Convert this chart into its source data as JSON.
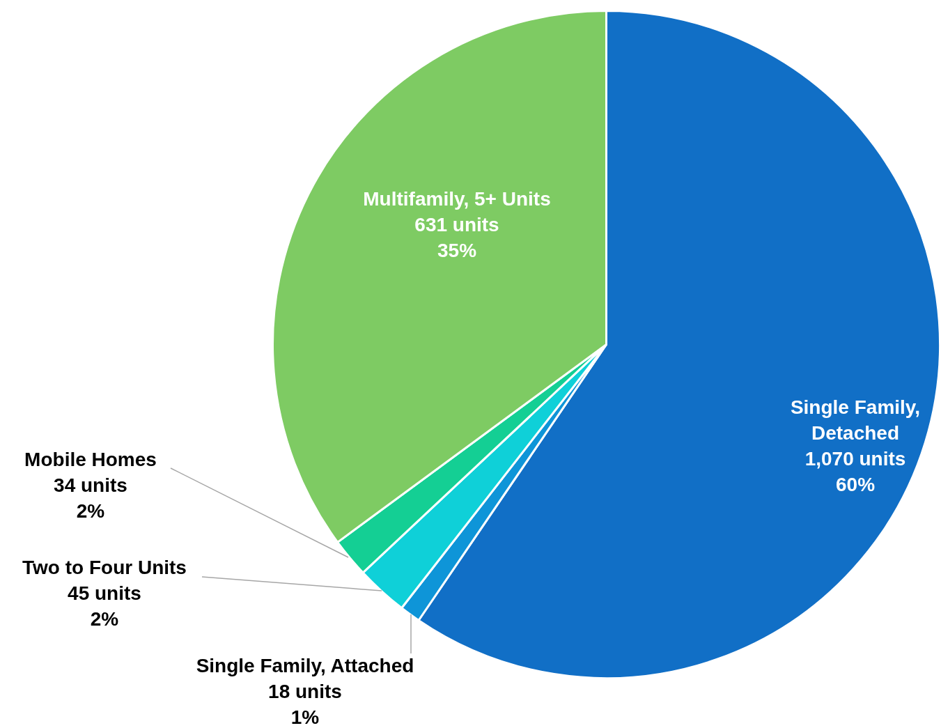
{
  "chart_data": {
    "type": "pie",
    "categories": [
      "Single Family,\nDetached",
      "Single Family, Attached",
      "Two to Four Units",
      "Mobile Homes",
      "Multifamily, 5+ Units"
    ],
    "values": [
      1070,
      18,
      45,
      34,
      631
    ],
    "colors": [
      "#116fc6",
      "#0e95d8",
      "#0fd0d8",
      "#14cf94",
      "#7ecb63"
    ],
    "value_labels": [
      "1,070 units\n60%",
      "18 units\n1%",
      "45 units\n2%",
      "34 units\n2%",
      "631 units\n35%"
    ],
    "legend": false
  }
}
